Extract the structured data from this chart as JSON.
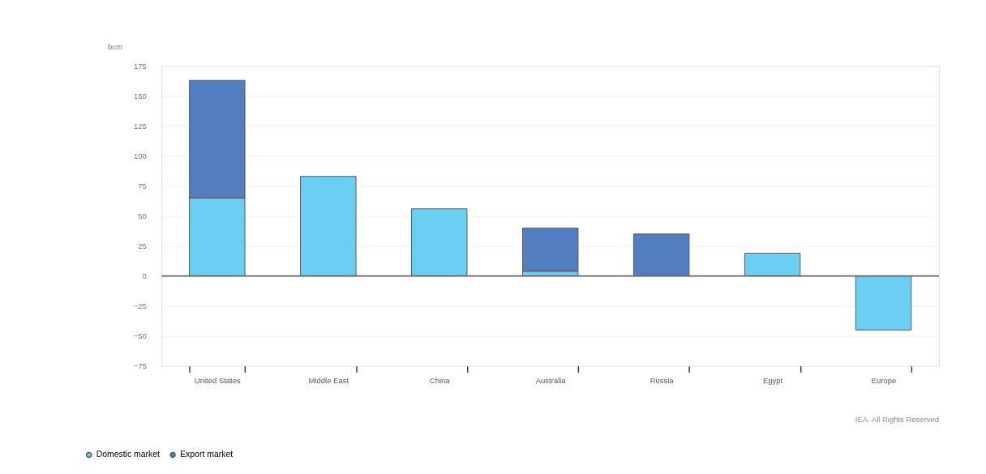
{
  "chart_data": {
    "type": "bar",
    "stacked": true,
    "ylabel": "bcm",
    "categories": [
      "United States",
      "Middle East",
      "China",
      "Australia",
      "Russia",
      "Egypt",
      "Europe"
    ],
    "series": [
      {
        "name": "Domestic market",
        "color": "#6acff2",
        "values": [
          65,
          83,
          56,
          4,
          0,
          19,
          -45
        ]
      },
      {
        "name": "Export market",
        "color": "#527ec2",
        "values": [
          98,
          0,
          0,
          36,
          35,
          0,
          0
        ]
      }
    ],
    "ylim": [
      -75,
      175
    ],
    "yticks": [
      -75,
      -50,
      -25,
      0,
      25,
      50,
      75,
      100,
      125,
      150,
      175
    ],
    "grid": "y",
    "legend": "bottom left",
    "ref_lines": [
      {
        "axis": "y",
        "value": 0,
        "color": "#666666"
      }
    ],
    "annotations": [
      "IEA. All Rights Reserved"
    ]
  }
}
